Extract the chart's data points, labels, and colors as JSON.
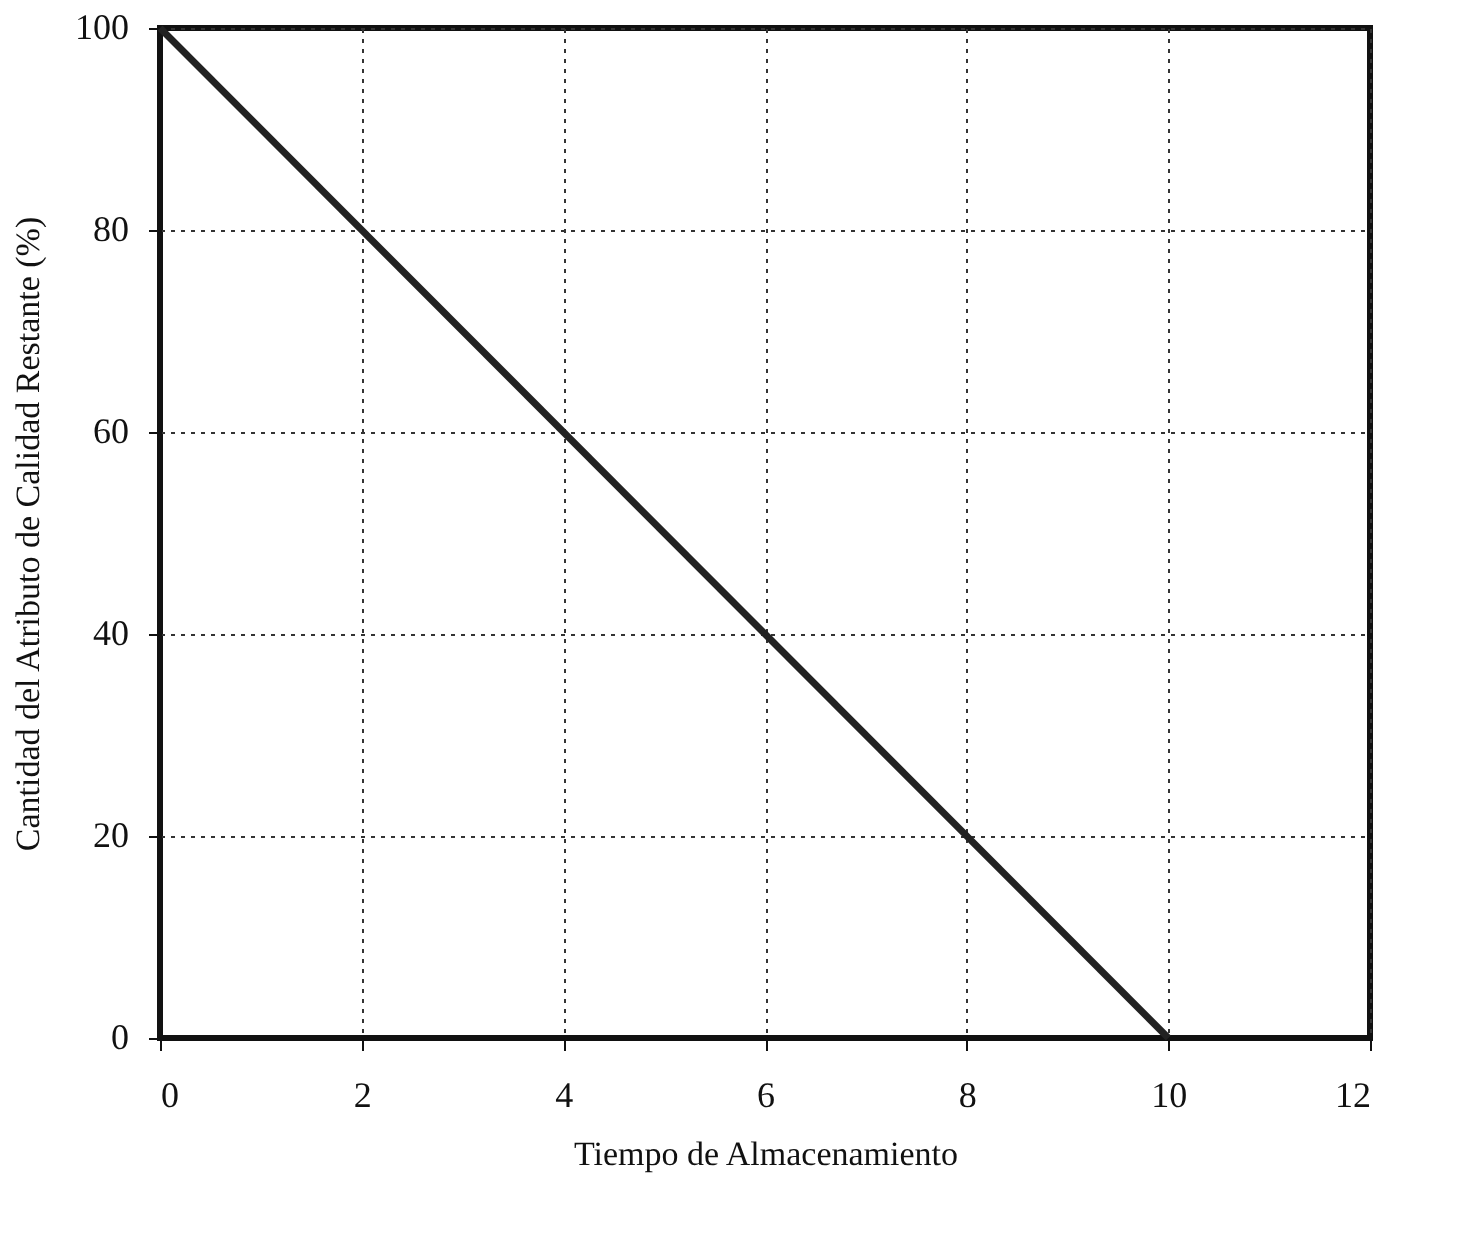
{
  "chart_data": {
    "type": "line",
    "xlabel": "Tiempo de Almacenamiento",
    "ylabel": "Cantidad del Atributo de Calidad Restante (%)",
    "x": [
      0,
      10
    ],
    "series": [
      {
        "color": "#222222",
        "values": [
          100,
          0
        ]
      }
    ],
    "xlim": [
      0,
      12
    ],
    "xticks": [
      0,
      2,
      4,
      6,
      8,
      10,
      12
    ],
    "ylim": [
      0,
      100
    ],
    "yticks": [
      0,
      20,
      40,
      60,
      80,
      100
    ],
    "grid": true,
    "marker": "none",
    "line_style": "solid",
    "legend": false
  }
}
